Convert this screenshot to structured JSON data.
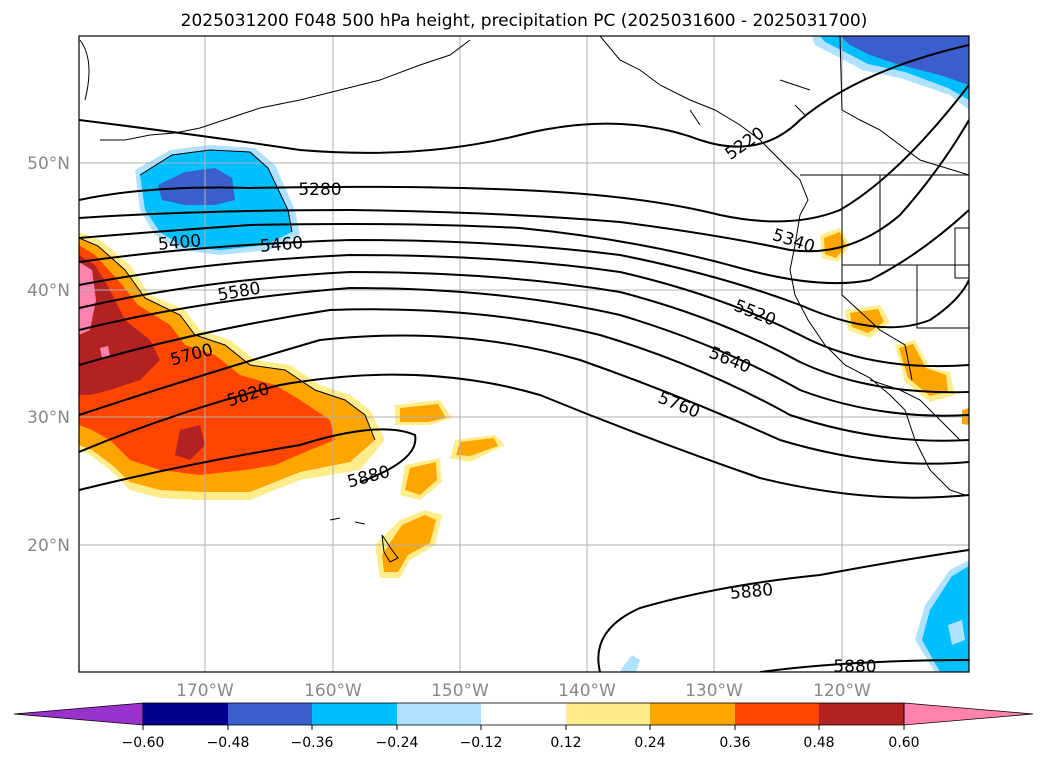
{
  "title": "2025031200 F048 500 hPa height, precipitation PC (2025031600 - 2025031700)",
  "lat_labels": [
    "50°N",
    "40°N",
    "30°N",
    "20°N"
  ],
  "lon_labels": [
    "170°W",
    "160°W",
    "150°W",
    "140°W",
    "130°W",
    "120°W"
  ],
  "colorbar": {
    "tick_labels": [
      "−0.60",
      "−0.48",
      "−0.36",
      "−0.24",
      "−0.12",
      "0.12",
      "0.24",
      "0.36",
      "0.48",
      "0.60"
    ],
    "colors": [
      "#9932cc",
      "#00008b",
      "#3a5fcd",
      "#00bfff",
      "#b0e2ff",
      "#ffffff",
      "#ffec8b",
      "#ffa500",
      "#ff4500",
      "#b22222",
      "#ff82ab"
    ]
  },
  "contour_labels": [
    "5280",
    "5400",
    "5460",
    "5580",
    "5700",
    "5820",
    "5880",
    "5220",
    "5340",
    "5520",
    "5640",
    "5760",
    "5880",
    "5880"
  ]
}
